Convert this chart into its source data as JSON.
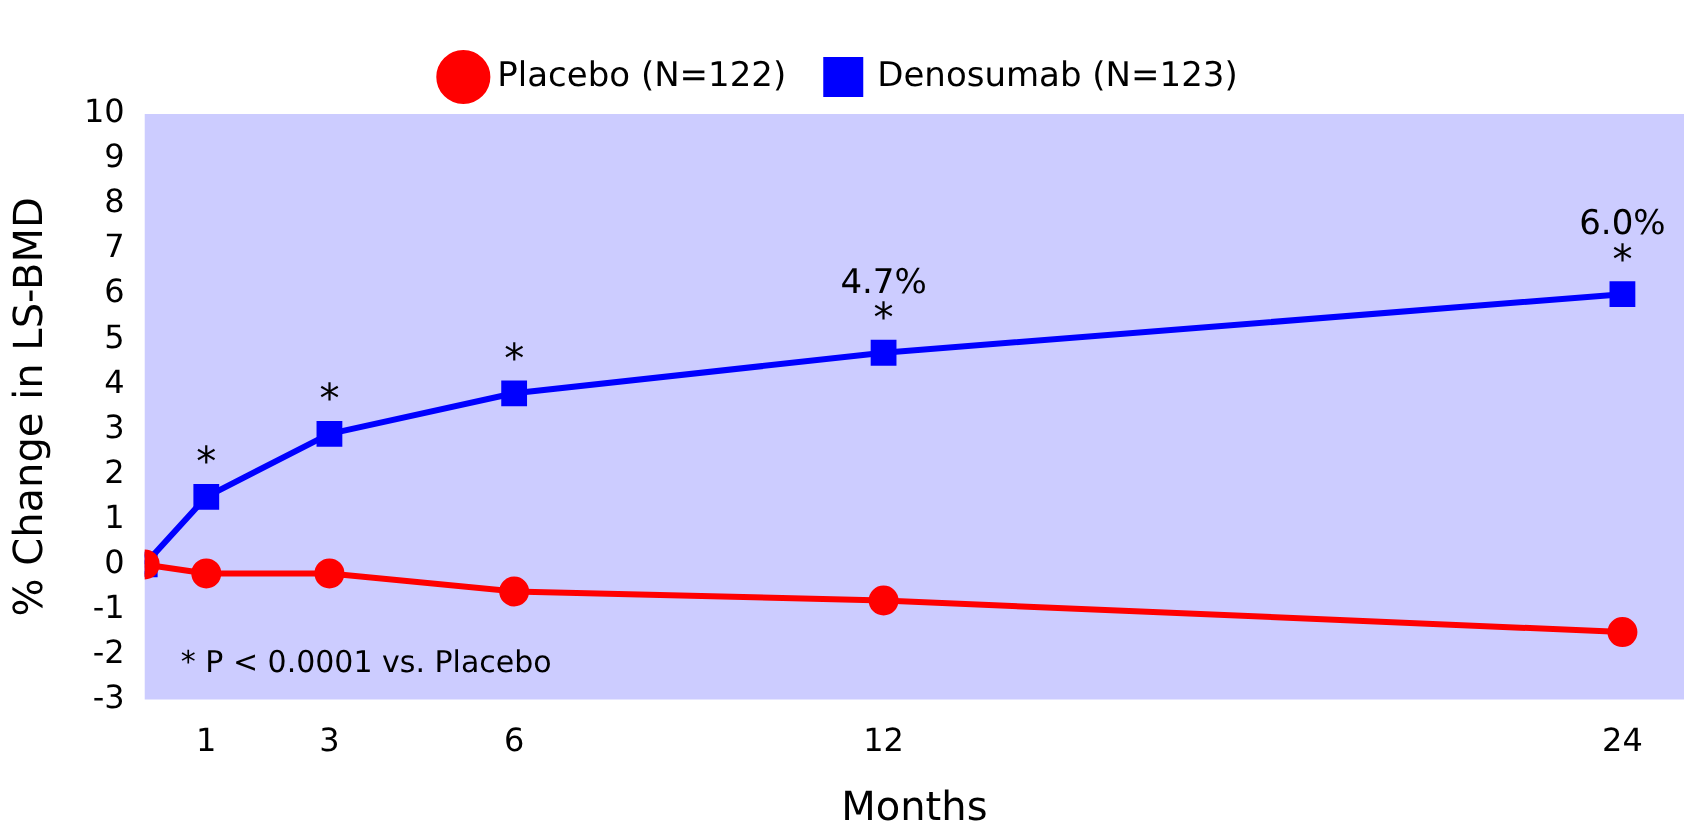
{
  "chart_data": {
    "type": "line",
    "xlabel": "Months",
    "ylabel": "% Change in LS-BMD",
    "x": [
      0,
      1,
      3,
      6,
      12,
      24
    ],
    "xlim": [
      0,
      25
    ],
    "xticks": [
      1,
      3,
      6,
      12,
      24
    ],
    "ylim": [
      -3,
      10
    ],
    "yticks": [
      -3,
      -2,
      -1,
      0,
      1,
      2,
      3,
      4,
      5,
      6,
      7,
      8,
      9,
      10
    ],
    "grid": false,
    "legend": "top",
    "series": [
      {
        "name": "Placebo (N=122)",
        "color": "#ff0000",
        "marker": "circle",
        "values": [
          0,
          -0.2,
          -0.2,
          -0.6,
          -0.8,
          -1.5
        ]
      },
      {
        "name": "Denosumab (N=123)",
        "color": "#0000ff",
        "marker": "square",
        "values": [
          0,
          1.5,
          2.9,
          3.8,
          4.7,
          6.0
        ],
        "value_labels": [
          null,
          null,
          null,
          null,
          "4.7%",
          "6.0%"
        ]
      }
    ],
    "annotations": [
      {
        "text": "*",
        "x": 1,
        "y": 1.5
      },
      {
        "text": "*",
        "x": 3,
        "y": 2.9
      },
      {
        "text": "*",
        "x": 6,
        "y": 3.8
      },
      {
        "text": "*",
        "x": 12,
        "y": 4.7
      },
      {
        "text": "*",
        "x": 24,
        "y": 6.0
      },
      "* P < 0.0001 vs. Placebo"
    ]
  }
}
